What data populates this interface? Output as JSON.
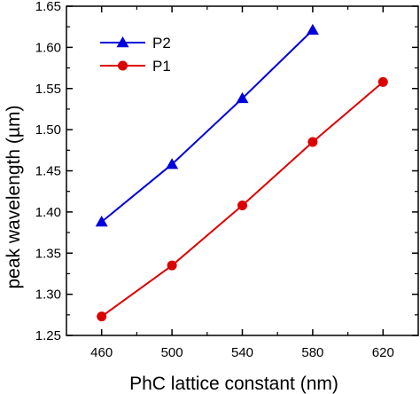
{
  "chart_data": {
    "type": "line",
    "title": "",
    "xlabel": "PhC lattice constant  (nm)",
    "ylabel": "peak   wavelength  (µm)",
    "xlim": [
      440,
      640
    ],
    "ylim": [
      1.25,
      1.65
    ],
    "x_ticks": [
      "460",
      "500",
      "540",
      "580",
      "620"
    ],
    "y_ticks": [
      "1.25",
      "1.30",
      "1.35",
      "1.40",
      "1.45",
      "1.50",
      "1.55",
      "1.60",
      "1.65"
    ],
    "grid": false,
    "legend_position": "top-left",
    "series": [
      {
        "name": "P2",
        "color": "#0000dd",
        "marker": "triangle",
        "x": [
          460,
          500,
          540,
          580
        ],
        "y": [
          1.388,
          1.458,
          1.538,
          1.621
        ]
      },
      {
        "name": "P1",
        "color": "#dd0000",
        "marker": "circle",
        "x": [
          460,
          500,
          540,
          580,
          620
        ],
        "y": [
          1.273,
          1.335,
          1.408,
          1.485,
          1.558
        ]
      }
    ]
  }
}
